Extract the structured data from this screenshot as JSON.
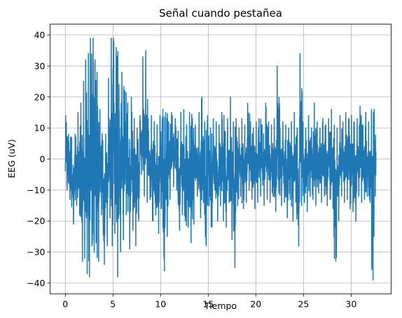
{
  "chart_data": {
    "type": "line",
    "title": "Señal cuando pestañea",
    "xlabel": "Tiempo",
    "ylabel": "EEG (uV)",
    "xlim": [
      -1.6,
      34.2
    ],
    "ylim": [
      -43.5,
      43.5
    ],
    "xticks": [
      0,
      5,
      10,
      15,
      20,
      25,
      30
    ],
    "yticks": [
      -40,
      -30,
      -20,
      -10,
      0,
      10,
      20,
      30,
      40
    ],
    "grid": true,
    "series": [
      {
        "color": "#1f77b4",
        "x_range": [
          0,
          32.6
        ],
        "envelope": [
          [
            0,
            -10,
            14
          ],
          [
            0.3,
            -13,
            8
          ],
          [
            0.6,
            -21,
            7
          ],
          [
            1.0,
            -15,
            8
          ],
          [
            1.3,
            -18,
            15
          ],
          [
            1.6,
            -33,
            18
          ],
          [
            1.9,
            -32,
            25
          ],
          [
            2.1,
            -37,
            32
          ],
          [
            2.4,
            -38,
            34
          ],
          [
            2.6,
            -28,
            39
          ],
          [
            2.9,
            -30,
            39
          ],
          [
            3.1,
            -27,
            32
          ],
          [
            3.3,
            -33,
            28
          ],
          [
            3.6,
            -18,
            16
          ],
          [
            3.9,
            -34,
            6
          ],
          [
            4.2,
            -28,
            8
          ],
          [
            4.5,
            -19,
            26
          ],
          [
            4.8,
            -28,
            39
          ],
          [
            5.0,
            -24,
            39
          ],
          [
            5.3,
            -38,
            36
          ],
          [
            5.6,
            -30,
            24
          ],
          [
            5.9,
            -26,
            28
          ],
          [
            6.2,
            -18,
            22
          ],
          [
            6.5,
            -29,
            18
          ],
          [
            6.9,
            -23,
            20
          ],
          [
            7.2,
            -28,
            13
          ],
          [
            7.5,
            -20,
            10
          ],
          [
            7.8,
            -5,
            14
          ],
          [
            8.1,
            -12,
            33
          ],
          [
            8.4,
            -14,
            35
          ],
          [
            8.7,
            -13,
            9
          ],
          [
            9.0,
            -20,
            14
          ],
          [
            9.3,
            -18,
            12
          ],
          [
            9.6,
            -24,
            11
          ],
          [
            9.9,
            -16,
            14
          ],
          [
            10.2,
            -36,
            16
          ],
          [
            10.5,
            -25,
            15
          ],
          [
            10.8,
            -13,
            12
          ],
          [
            11.1,
            -9,
            15
          ],
          [
            11.5,
            -10,
            13
          ],
          [
            11.8,
            -23,
            9
          ],
          [
            12.1,
            -18,
            15
          ],
          [
            12.4,
            -20,
            16
          ],
          [
            12.7,
            -22,
            11
          ],
          [
            13.0,
            -27,
            15
          ],
          [
            13.3,
            -21,
            13
          ],
          [
            13.6,
            -12,
            11
          ],
          [
            14.0,
            -19,
            15
          ],
          [
            14.3,
            -14,
            20
          ],
          [
            14.6,
            -28,
            12
          ],
          [
            14.9,
            -15,
            14
          ],
          [
            15.2,
            -22,
            10
          ],
          [
            15.5,
            -10,
            13
          ],
          [
            15.8,
            -20,
            12
          ],
          [
            16.1,
            -15,
            11
          ],
          [
            16.4,
            -20,
            15
          ],
          [
            16.7,
            -22,
            9
          ],
          [
            17.0,
            -14,
            13
          ],
          [
            17.3,
            -26,
            20
          ],
          [
            17.6,
            -35,
            12
          ],
          [
            17.9,
            -15,
            13
          ],
          [
            18.2,
            -12,
            10
          ],
          [
            18.5,
            -16,
            13
          ],
          [
            18.8,
            -14,
            11
          ],
          [
            19.1,
            -10,
            18
          ],
          [
            19.4,
            -13,
            12
          ],
          [
            19.7,
            -16,
            10
          ],
          [
            20.0,
            -14,
            12
          ],
          [
            20.3,
            -12,
            13
          ],
          [
            20.6,
            -15,
            11
          ],
          [
            21.0,
            -13,
            18
          ],
          [
            21.3,
            -14,
            12
          ],
          [
            21.6,
            -12,
            11
          ],
          [
            21.9,
            -17,
            13
          ],
          [
            22.2,
            -11,
            30
          ],
          [
            22.5,
            -15,
            10
          ],
          [
            22.8,
            -14,
            12
          ],
          [
            23.1,
            -19,
            11
          ],
          [
            23.4,
            -13,
            10
          ],
          [
            23.7,
            -20,
            12
          ],
          [
            24.0,
            -14,
            15
          ],
          [
            24.3,
            -28,
            10
          ],
          [
            24.6,
            -15,
            34
          ],
          [
            24.9,
            -14,
            12
          ],
          [
            25.2,
            -17,
            10
          ],
          [
            25.5,
            -12,
            14
          ],
          [
            25.8,
            -13,
            10
          ],
          [
            26.1,
            -15,
            18
          ],
          [
            26.4,
            -11,
            12
          ],
          [
            26.7,
            -14,
            10
          ],
          [
            27.0,
            -12,
            13
          ],
          [
            27.3,
            -15,
            11
          ],
          [
            27.6,
            -13,
            13
          ],
          [
            27.9,
            -16,
            16
          ],
          [
            28.2,
            -33,
            11
          ],
          [
            28.5,
            -20,
            10
          ],
          [
            28.8,
            -12,
            14
          ],
          [
            29.1,
            -14,
            12
          ],
          [
            29.4,
            -13,
            15
          ],
          [
            29.7,
            -16,
            13
          ],
          [
            30.0,
            -17,
            14
          ],
          [
            30.3,
            -20,
            12
          ],
          [
            30.6,
            -12,
            13
          ],
          [
            30.9,
            -14,
            17
          ],
          [
            31.2,
            -13,
            11
          ],
          [
            31.5,
            -12,
            15
          ],
          [
            31.8,
            -14,
            12
          ],
          [
            32.1,
            -39,
            16
          ],
          [
            32.4,
            -12,
            16
          ],
          [
            32.6,
            -2,
            7
          ]
        ]
      }
    ]
  }
}
